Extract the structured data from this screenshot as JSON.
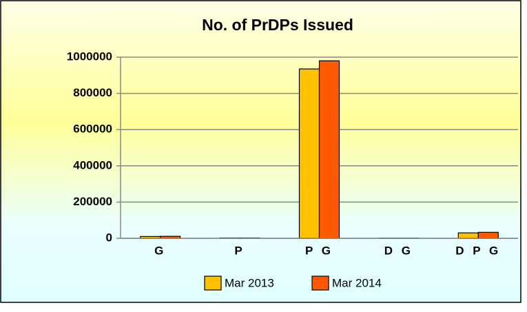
{
  "chart_data": {
    "type": "bar",
    "title": "No. of PrDPs Issued",
    "categories": [
      "G",
      "P",
      "P G",
      "D G",
      "D P G"
    ],
    "series": [
      {
        "name": "Mar 2013",
        "color": "#ffc000",
        "values": [
          10000,
          2000,
          935000,
          1000,
          30000
        ]
      },
      {
        "name": "Mar 2014",
        "color": "#ff5a00",
        "values": [
          11000,
          2000,
          980000,
          1000,
          33000
        ]
      }
    ],
    "ylim": [
      0,
      1000000
    ],
    "yticks": [
      0,
      200000,
      400000,
      600000,
      800000,
      1000000
    ],
    "grid": true,
    "legend": "bottom"
  }
}
